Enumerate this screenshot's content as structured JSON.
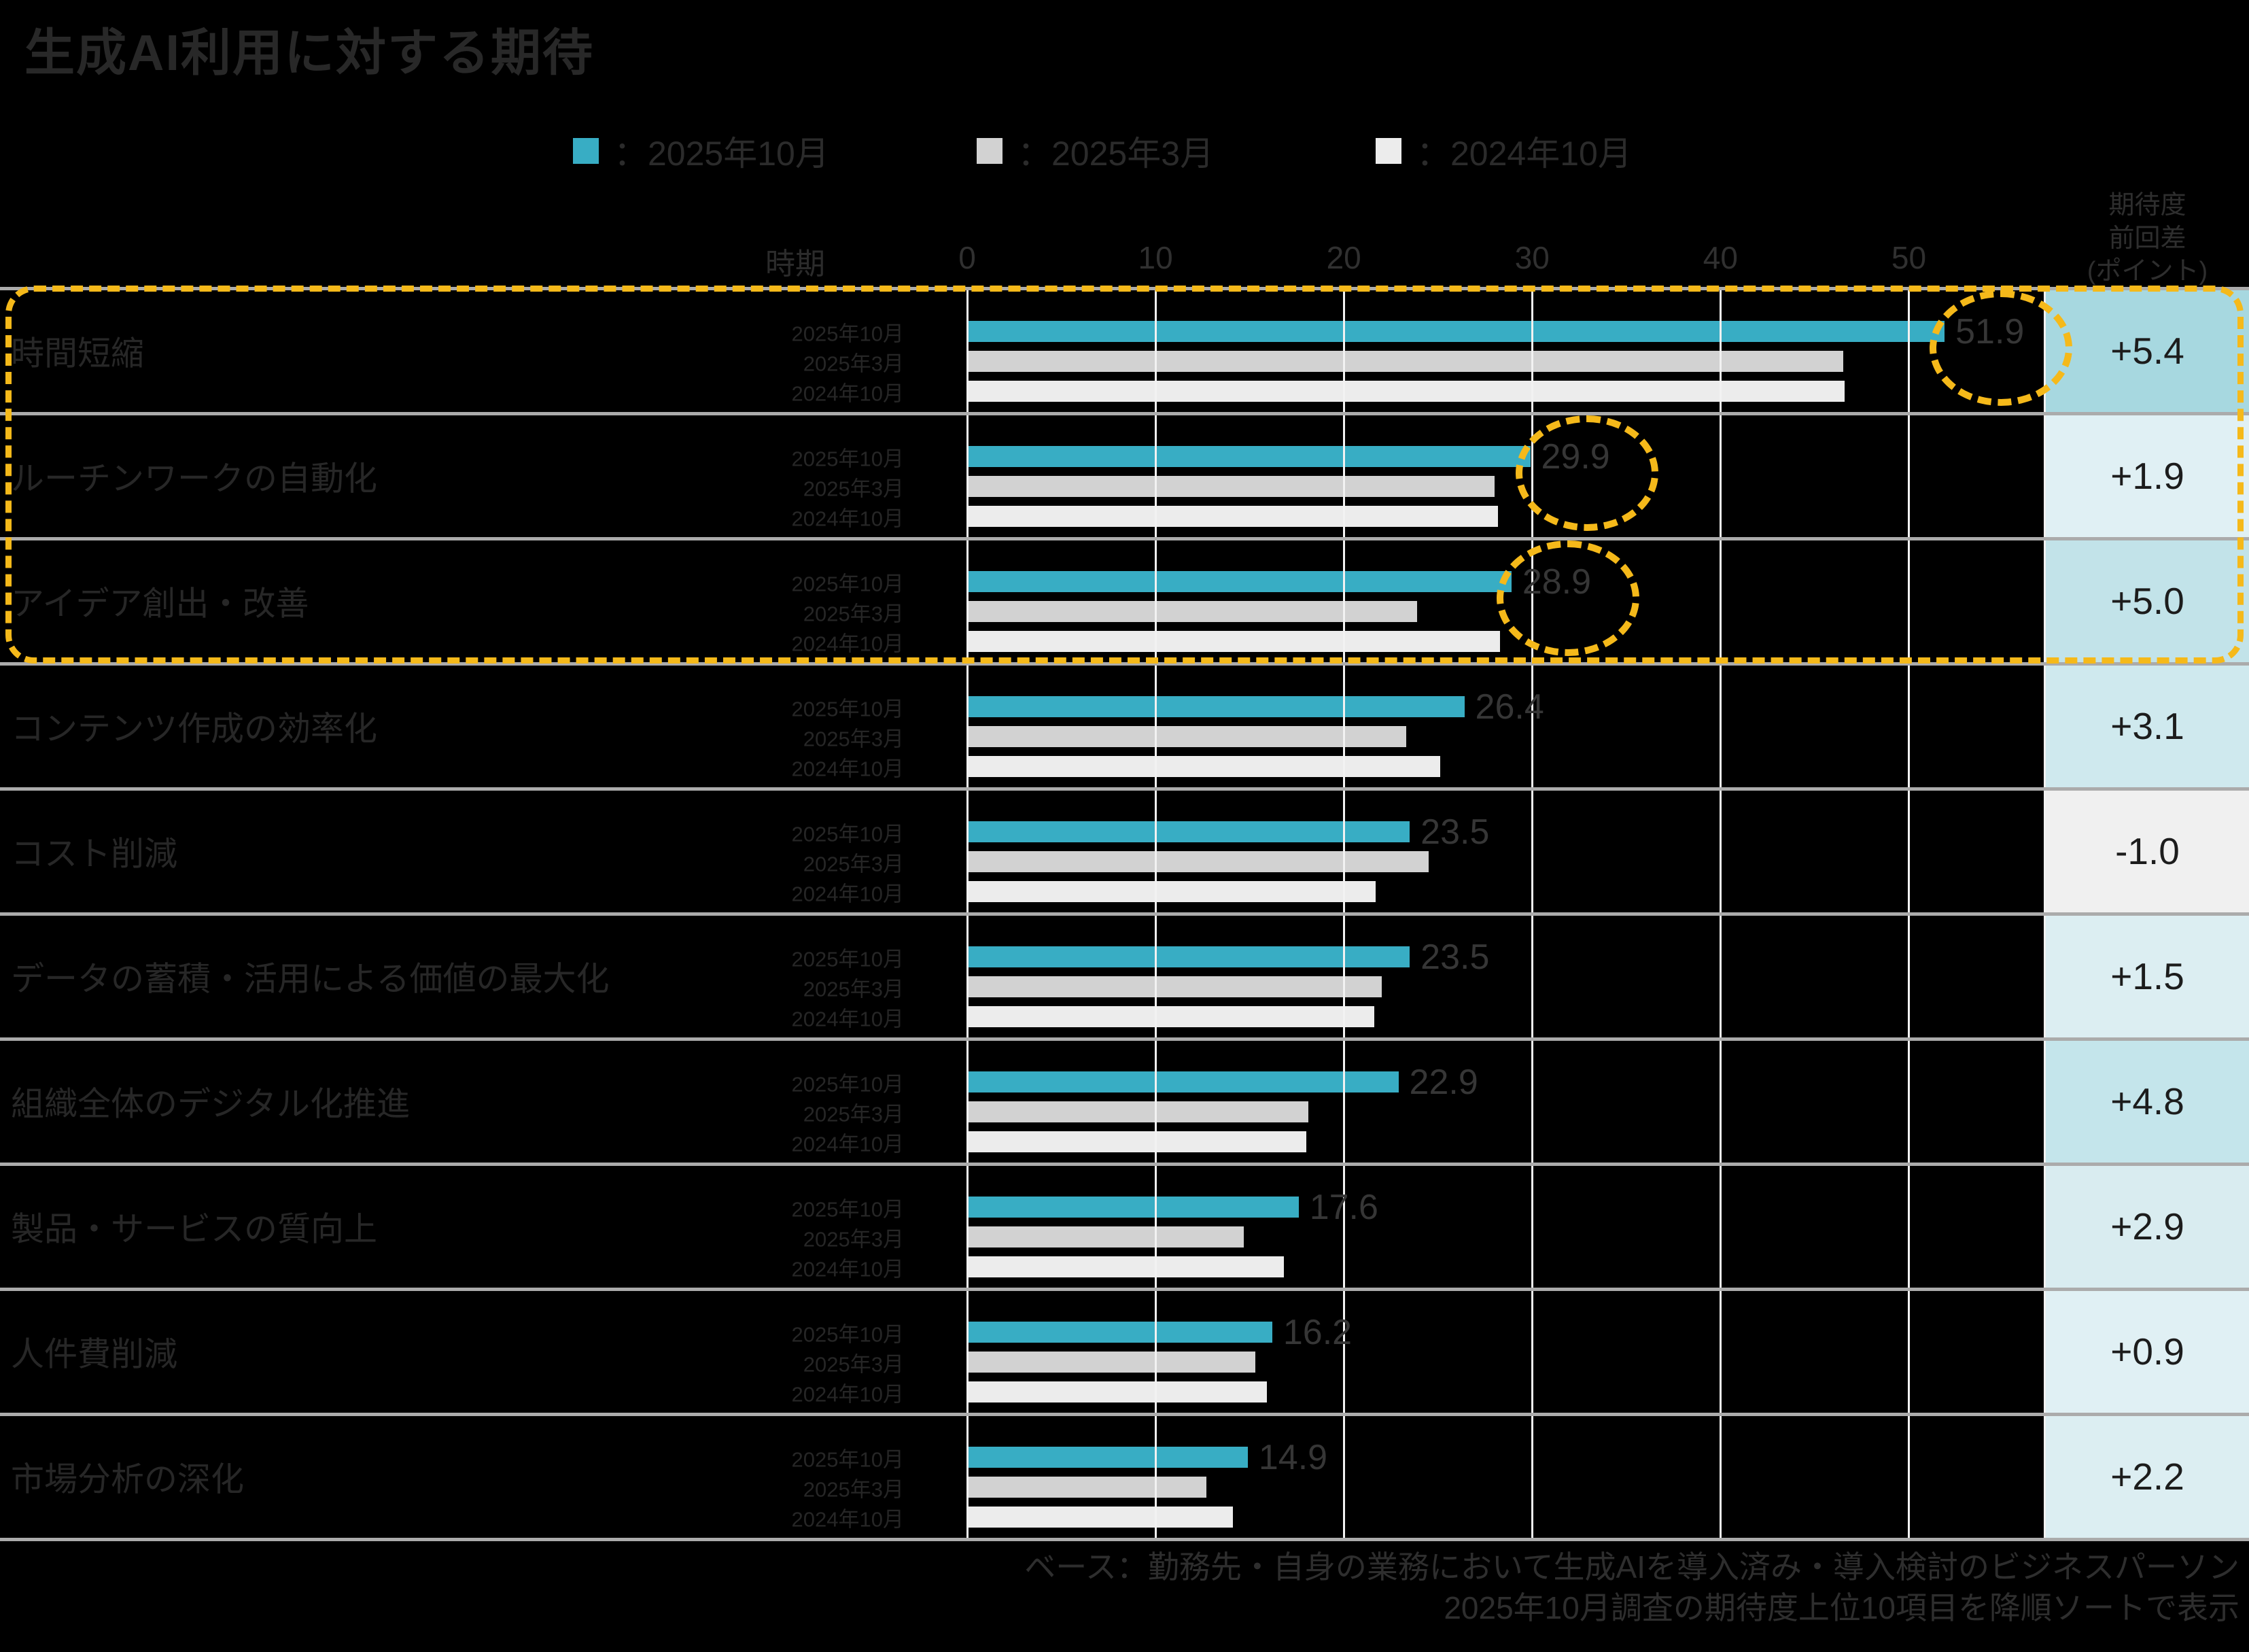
{
  "title": "生成AI利用に対する期待",
  "legend": [
    {
      "name": "2025-10",
      "label": "：2025年10月",
      "color": "#38adc4"
    },
    {
      "name": "2025-03",
      "label": "：2025年3月",
      "color": "#d2d2d2"
    },
    {
      "name": "2024-10",
      "label": "：2024年10月",
      "color": "#ececec"
    }
  ],
  "header": {
    "period_label": "時期",
    "diff_header_lines": [
      "期待度",
      "前回差",
      "(ポイント)"
    ]
  },
  "axis": {
    "ticks": [
      0,
      10,
      20,
      30,
      40,
      50
    ],
    "max": 57.2
  },
  "period_labels": [
    "2025年10月",
    "2025年3月",
    "2024年10月"
  ],
  "colors": {
    "bar_current": "#38adc4",
    "bar_previous": "#d2d2d2",
    "bar_oldest": "#ececec",
    "highlight": "#f5b91a",
    "separator": "#ababab",
    "gridline": "#f2f2f2",
    "background": "#000000"
  },
  "rows": [
    {
      "category": "時間短縮",
      "values": [
        51.9,
        46.5,
        46.6
      ],
      "value_label": "51.9",
      "diff": "+5.4",
      "diff_bg": "#a7d8e0",
      "circled": true
    },
    {
      "category": "ルーチンワークの自動化",
      "values": [
        29.9,
        28.0,
        28.2
      ],
      "value_label": "29.9",
      "diff": "+1.9",
      "diff_bg": "#e0f0f4",
      "circled": true
    },
    {
      "category": "アイデア創出・改善",
      "values": [
        28.9,
        23.9,
        28.3
      ],
      "value_label": "28.9",
      "diff": "+5.0",
      "diff_bg": "#c2e3e9",
      "circled": true
    },
    {
      "category": "コンテンツ作成の効率化",
      "values": [
        26.4,
        23.3,
        25.1
      ],
      "value_label": "26.4",
      "diff": "+3.1",
      "diff_bg": "#cfe9ee",
      "circled": false
    },
    {
      "category": "コスト削減",
      "values": [
        23.5,
        24.5,
        21.7
      ],
      "value_label": "23.5",
      "diff": "-1.0",
      "diff_bg": "#f0f0f0",
      "circled": false
    },
    {
      "category": "データの蓄積・活用による価値の最大化",
      "values": [
        23.5,
        22.0,
        21.6
      ],
      "value_label": "23.5",
      "diff": "+1.5",
      "diff_bg": "#dceef2",
      "circled": false
    },
    {
      "category": "組織全体のデジタル化推進",
      "values": [
        22.9,
        18.1,
        18.0
      ],
      "value_label": "22.9",
      "diff": "+4.8",
      "diff_bg": "#c4e5eb",
      "circled": false
    },
    {
      "category": "製品・サービスの質向上",
      "values": [
        17.6,
        14.7,
        16.8
      ],
      "value_label": "17.6",
      "diff": "+2.9",
      "diff_bg": "#d9ecf0",
      "circled": false
    },
    {
      "category": "人件費削減",
      "values": [
        16.2,
        15.3,
        15.9
      ],
      "value_label": "16.2",
      "diff": "+0.9",
      "diff_bg": "#e0f0f4",
      "circled": false
    },
    {
      "category": "市場分析の深化",
      "values": [
        14.9,
        12.7,
        14.1
      ],
      "value_label": "14.9",
      "diff": "+2.2",
      "diff_bg": "#dceef2",
      "circled": false
    }
  ],
  "footer": [
    "ベース：勤務先・自身の業務において生成AIを導入済み・導入検討のビジネスパーソン",
    "2025年10月調査の期待度上位10項目を降順ソートで表示"
  ],
  "chart_data": {
    "type": "bar",
    "orientation": "horizontal",
    "title": "生成AI利用に対する期待",
    "categories": [
      "時間短縮",
      "ルーチンワークの自動化",
      "アイデア創出・改善",
      "コンテンツ作成の効率化",
      "コスト削減",
      "データの蓄積・活用による価値の最大化",
      "組織全体のデジタル化推進",
      "製品・サービスの質向上",
      "人件費削減",
      "市場分析の深化"
    ],
    "series": [
      {
        "name": "2025年10月",
        "values": [
          51.9,
          29.9,
          28.9,
          26.4,
          23.5,
          23.5,
          22.9,
          17.6,
          16.2,
          14.9
        ]
      },
      {
        "name": "2025年3月",
        "values": [
          46.5,
          28.0,
          23.9,
          23.3,
          24.5,
          22.0,
          18.1,
          14.7,
          15.3,
          12.7
        ]
      },
      {
        "name": "2024年10月",
        "values": [
          46.6,
          28.2,
          28.3,
          25.1,
          21.7,
          21.6,
          18.0,
          16.8,
          15.9,
          14.1
        ]
      }
    ],
    "diff_column": {
      "header": "期待度前回差(ポイント)",
      "values": [
        "+5.4",
        "+1.9",
        "+5.0",
        "+3.1",
        "-1.0",
        "+1.5",
        "+4.8",
        "+2.9",
        "+0.9",
        "+2.2"
      ]
    },
    "xlabel": "",
    "ylabel": "",
    "xlim": [
      0,
      57.2
    ],
    "xticks": [
      0,
      10,
      20,
      30,
      40,
      50
    ],
    "grid": true,
    "legend_position": "top",
    "annotations": {
      "highlighted_rows": [
        "時間短縮",
        "ルーチンワークの自動化",
        "アイデア創出・改善"
      ],
      "circled_values": [
        51.9,
        29.9,
        28.9
      ]
    },
    "notes": [
      "ベース：勤務先・自身の業務において生成AIを導入済み・導入検討のビジネスパーソン",
      "2025年10月調査の期待度上位10項目を降順ソートで表示"
    ]
  }
}
